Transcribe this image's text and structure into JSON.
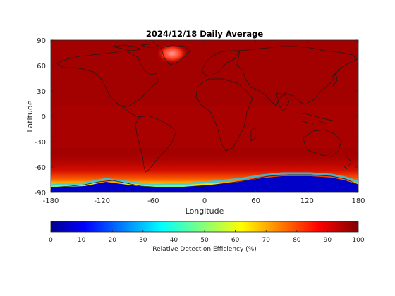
{
  "title": "2024/12/18 Daily Average",
  "map": {
    "xlabel": "Longitude",
    "ylabel": "Latitude",
    "xlim": [
      -180,
      180
    ],
    "ylim": [
      -90,
      90
    ],
    "xticks": [
      -180,
      -120,
      -60,
      0,
      60,
      120,
      180
    ],
    "yticks": [
      90,
      60,
      30,
      0,
      -30,
      -60,
      -90
    ],
    "field": "Relative Detection Efficiency",
    "background_value": 98,
    "features": [
      "Greenland interior minimum ~85-90%",
      "Southern Ocean gradient toward Antarctica",
      "Antarctic coast values 0-30%"
    ]
  },
  "colorbar": {
    "label": "Relative Detection Efficiency (%)",
    "ticks": [
      0,
      10,
      20,
      30,
      40,
      50,
      60,
      70,
      80,
      90,
      100
    ],
    "colormap": "jet",
    "range": [
      0,
      100
    ]
  },
  "colors": {
    "dark_red": "#800000",
    "map_red": "#a80000",
    "coast": "#1a1a1a",
    "antarctic_blue": "#0000c8"
  }
}
